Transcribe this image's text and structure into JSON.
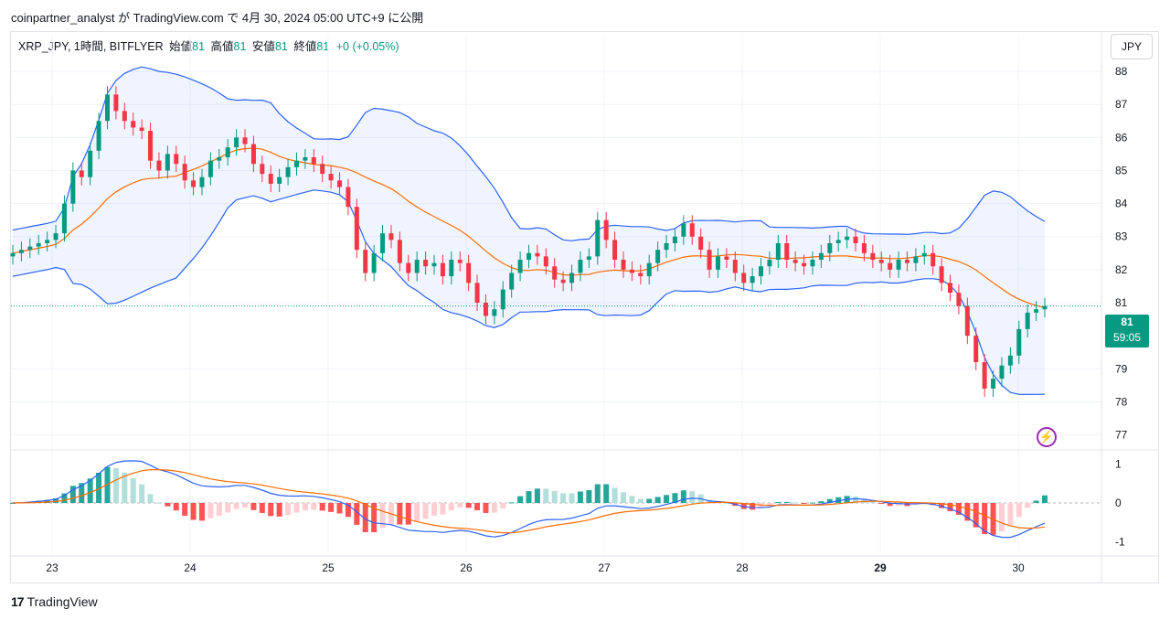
{
  "caption": "coinpartner_analyst が TradingView.com で 4月 30, 2024 05:00 UTC+9 に公開",
  "legend": {
    "symbol": "XRP_JPY, 1時間, BITFLYER",
    "open_label": "始値",
    "open": "81",
    "high_label": "高値",
    "high": "81",
    "low_label": "安値",
    "low": "81",
    "close_label": "終値",
    "close": "81",
    "change": "+0 (+0.05%)"
  },
  "currency": "JPY",
  "last_price": {
    "price": "81",
    "countdown": "59:05"
  },
  "footer": {
    "brand": "TradingView",
    "logo": "17"
  },
  "colors": {
    "up": "#089981",
    "down": "#f23645",
    "band": "#2962ff",
    "basis": "#ff6d00",
    "macd": "#2962ff",
    "signal": "#ff6d00"
  },
  "chart_data": {
    "type": "candlestick",
    "price_axis": {
      "ticks": [
        88,
        87,
        86,
        85,
        84,
        83,
        82,
        81,
        79,
        78,
        77
      ],
      "range": [
        76.6,
        88.5
      ]
    },
    "macd_axis": {
      "ticks": [
        1,
        0,
        -1
      ],
      "range": [
        -1.3,
        1.3
      ]
    },
    "x_labels": [
      "23",
      "24",
      "25",
      "26",
      "27",
      "28",
      "29",
      "30"
    ],
    "closes": [
      82.5,
      82.6,
      82.7,
      82.8,
      82.9,
      83.1,
      84.0,
      85.0,
      84.8,
      85.6,
      86.5,
      87.3,
      86.8,
      86.5,
      86.3,
      86.2,
      85.3,
      85.0,
      85.5,
      85.2,
      84.7,
      84.5,
      84.8,
      85.3,
      85.4,
      85.7,
      86.0,
      85.8,
      85.2,
      84.9,
      84.6,
      84.8,
      85.1,
      85.3,
      85.4,
      85.2,
      84.9,
      84.7,
      84.5,
      83.9,
      82.6,
      81.9,
      82.5,
      83.1,
      82.9,
      82.2,
      81.9,
      82.3,
      82.1,
      82.2,
      81.8,
      82.3,
      82.2,
      81.6,
      81.0,
      80.6,
      80.8,
      81.4,
      81.9,
      82.3,
      82.5,
      82.4,
      82.1,
      81.7,
      81.6,
      81.9,
      82.3,
      82.4,
      83.5,
      82.9,
      82.3,
      82.0,
      81.9,
      81.8,
      82.2,
      82.6,
      82.8,
      83.0,
      83.4,
      83.0,
      82.6,
      82.0,
      82.4,
      82.3,
      81.9,
      81.6,
      81.8,
      82.1,
      82.3,
      82.8,
      82.3,
      82.2,
      82.1,
      82.3,
      82.5,
      82.8,
      82.9,
      83.0,
      82.8,
      82.5,
      82.3,
      82.2,
      82.0,
      82.3,
      82.2,
      82.4,
      82.5,
      82.1,
      81.6,
      81.3,
      80.9,
      80.0,
      79.2,
      78.4,
      78.7,
      79.1,
      79.4,
      80.2,
      80.7,
      80.8,
      80.9
    ]
  }
}
